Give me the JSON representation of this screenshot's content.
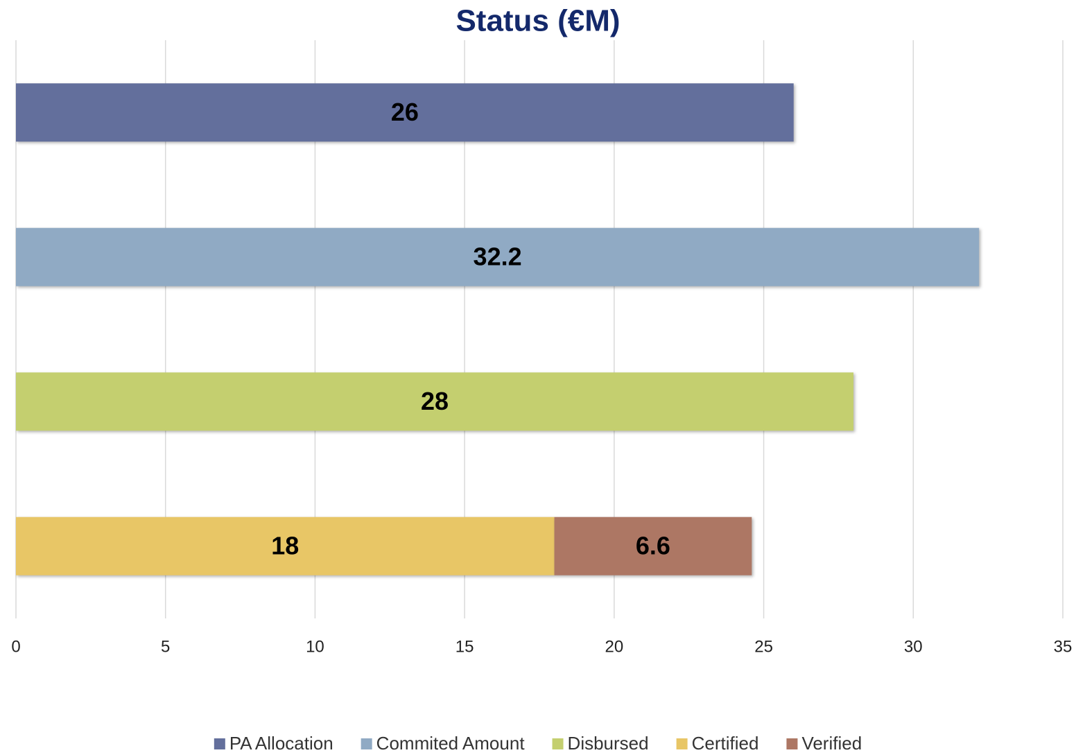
{
  "chart_data": {
    "type": "bar",
    "orientation": "horizontal",
    "stacked": true,
    "title": "Status (€M)",
    "categories": [
      null,
      null,
      null,
      null
    ],
    "series": [
      {
        "name": "PA Allocation",
        "color": "#636f9c",
        "values": [
          26,
          null,
          null,
          null
        ]
      },
      {
        "name": "Commited Amount",
        "color": "#90aac4",
        "values": [
          null,
          32.2,
          null,
          null
        ]
      },
      {
        "name": "Disbursed",
        "color": "#c4cf6f",
        "values": [
          null,
          null,
          28,
          null
        ]
      },
      {
        "name": "Certified",
        "color": "#e8c666",
        "values": [
          null,
          null,
          null,
          18
        ]
      },
      {
        "name": "Verified",
        "color": "#ad7764",
        "values": [
          null,
          null,
          null,
          6.6
        ]
      }
    ],
    "xlim": [
      0,
      35
    ],
    "xticks": [
      0,
      5,
      10,
      15,
      20,
      25,
      30,
      35
    ],
    "grid": true,
    "legend": "bottom"
  }
}
